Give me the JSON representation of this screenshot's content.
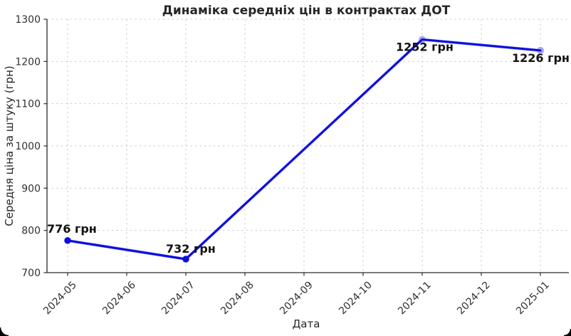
{
  "chart_data": {
    "type": "line",
    "title": "Динаміка середніх цін в контрактах ДОТ",
    "xlabel": "Дата",
    "ylabel": "Середня ціна за штуку (грн)",
    "x_ticks": [
      "2024-05",
      "2024-06",
      "2024-07",
      "2024-08",
      "2024-09",
      "2024-10",
      "2024-11",
      "2024-12",
      "2025-01"
    ],
    "y_ticks": [
      700,
      800,
      900,
      1000,
      1100,
      1200,
      1300
    ],
    "ylim": [
      700,
      1300
    ],
    "grid": true,
    "legend": "none",
    "series": [
      {
        "name": "Середня ціна за штуку",
        "line_color": "#0d0ddf",
        "halo_color": "#a3a8ee",
        "points": [
          {
            "x": "2024-05",
            "y": 776,
            "label": "776 грн",
            "label_offset": [
              -29,
              -11
            ]
          },
          {
            "x": "2024-07",
            "y": 732,
            "label": "732 грн",
            "label_offset": [
              -28,
              -9
            ]
          },
          {
            "x": "2024-11",
            "y": 1252,
            "label": "1252 грн",
            "label_offset": [
              -37,
              16
            ]
          },
          {
            "x": "2025-01",
            "y": 1226,
            "label": "1226 грн",
            "label_offset": [
              -40,
              16
            ]
          }
        ]
      }
    ],
    "colors": {
      "grid": "#cdcdcd",
      "axis": "#2a2a2a",
      "tick_label": "#303030",
      "annotation": "#111111",
      "background": "#ffffff"
    }
  }
}
